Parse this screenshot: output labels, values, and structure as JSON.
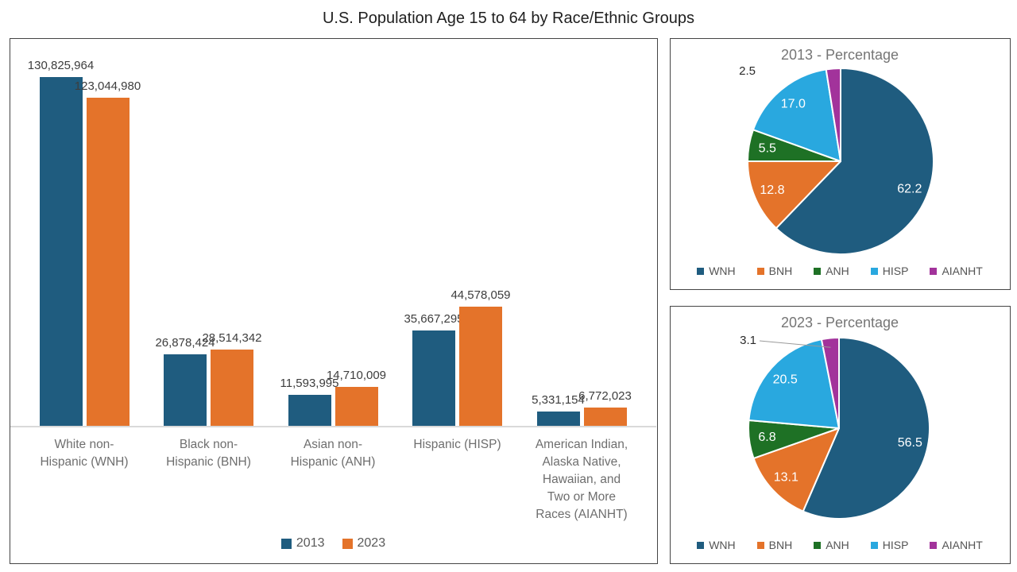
{
  "title": "U.S. Population Age 15 to 64 by Race/Ethnic Groups",
  "palette": {
    "wnh_2013_blue": "#1F5C7F",
    "bnh_2023_orange": "#E4732A",
    "anh_green": "#1E7125",
    "hisp_lightblue": "#29A8DF",
    "aianht_purple": "#A2339B",
    "axis_gray": "#d9d9d9",
    "border_gray": "#454545"
  },
  "chart_data": [
    {
      "type": "bar",
      "title": "",
      "categories": [
        "White non-\nHispanic (WNH)",
        "Black non-\nHispanic (BNH)",
        "Asian non-\nHispanic (ANH)",
        "Hispanic (HISP)",
        "American Indian,\nAlaska Native,\nHawaiian, and\nTwo or More\nRaces (AIANHT)"
      ],
      "category_keys": [
        "wnh",
        "bnh",
        "anh",
        "hisp",
        "aianht"
      ],
      "series": [
        {
          "name": "2013",
          "color": "#1F5C7F",
          "values": [
            130825964,
            26878424,
            11593995,
            35667295,
            5331154
          ],
          "labels": [
            "130,825,964",
            "26,878,424",
            "11,593,995",
            "35,667,295",
            "5,331,154"
          ]
        },
        {
          "name": "2023",
          "color": "#E4732A",
          "values": [
            123044980,
            28514342,
            14710009,
            44578059,
            6772023
          ],
          "labels": [
            "123,044,980",
            "28,514,342",
            "14,710,009",
            "44,578,059",
            "6,772,023"
          ]
        }
      ],
      "legend_position": "bottom",
      "grid": false,
      "ylim": [
        0,
        130825964
      ],
      "xlabel": "",
      "ylabel": ""
    },
    {
      "type": "pie",
      "title": "2013 - Percentage",
      "legend_position": "bottom",
      "legend": [
        "WNH",
        "BNH",
        "ANH",
        "HISP",
        "AIANHT"
      ],
      "slices": [
        {
          "label": "WNH",
          "value": 62.2,
          "display": "62.2",
          "color": "#1F5C7F",
          "label_inside": true,
          "leader": false
        },
        {
          "label": "BNH",
          "value": 12.8,
          "display": "12.8",
          "color": "#E4732A",
          "label_inside": true,
          "leader": false
        },
        {
          "label": "ANH",
          "value": 5.5,
          "display": "5.5",
          "color": "#1E7125",
          "label_inside": true,
          "leader": false
        },
        {
          "label": "HISP",
          "value": 17.0,
          "display": "17.0",
          "color": "#29A8DF",
          "label_inside": true,
          "leader": false
        },
        {
          "label": "AIANHT",
          "value": 2.5,
          "display": "2.5",
          "color": "#A2339B",
          "label_inside": false,
          "leader": false
        }
      ]
    },
    {
      "type": "pie",
      "title": "2023 - Percentage",
      "legend_position": "bottom",
      "legend": [
        "WNH",
        "BNH",
        "ANH",
        "HISP",
        "AIANHT"
      ],
      "slices": [
        {
          "label": "WNH",
          "value": 56.5,
          "display": "56.5",
          "color": "#1F5C7F",
          "label_inside": true,
          "leader": false
        },
        {
          "label": "BNH",
          "value": 13.1,
          "display": "13.1",
          "color": "#E4732A",
          "label_inside": true,
          "leader": false
        },
        {
          "label": "ANH",
          "value": 6.8,
          "display": "6.8",
          "color": "#1E7125",
          "label_inside": true,
          "leader": false
        },
        {
          "label": "HISP",
          "value": 20.5,
          "display": "20.5",
          "color": "#29A8DF",
          "label_inside": true,
          "leader": false
        },
        {
          "label": "AIANHT",
          "value": 3.1,
          "display": "3.1",
          "color": "#A2339B",
          "label_inside": false,
          "leader": true
        }
      ]
    }
  ]
}
